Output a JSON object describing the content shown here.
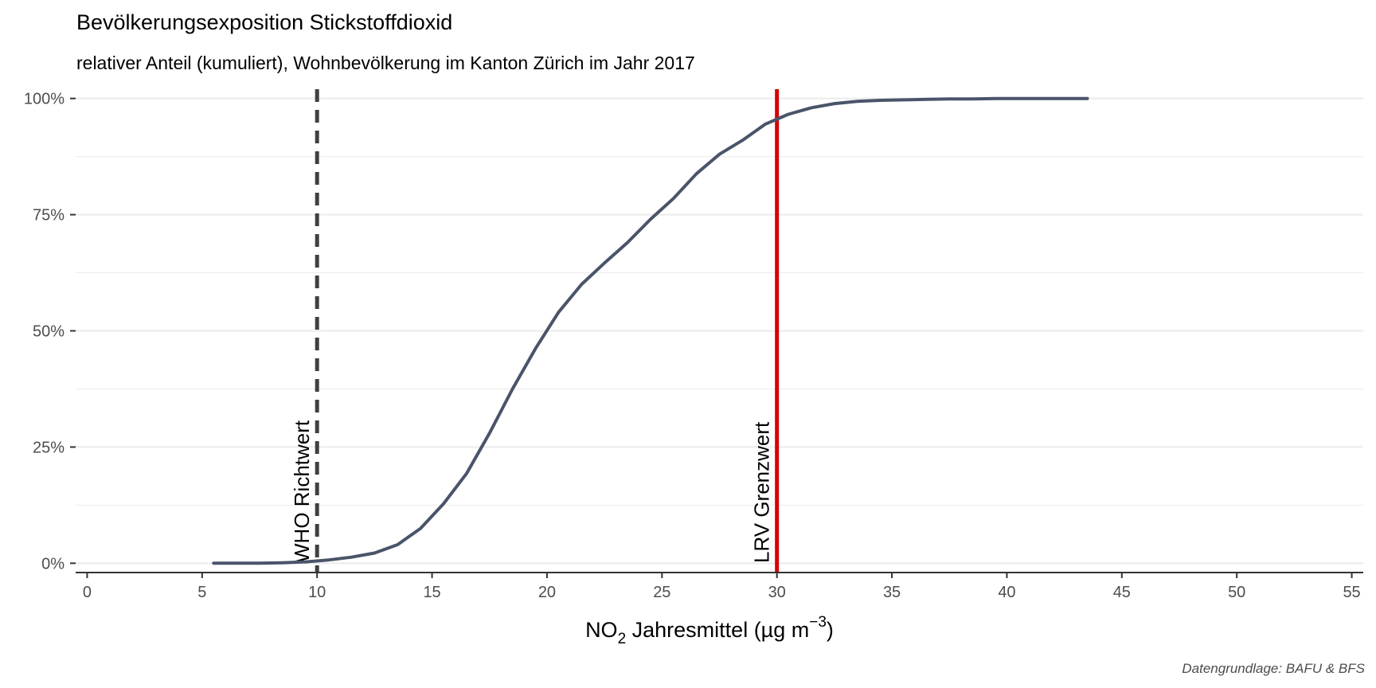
{
  "chart_data": {
    "type": "line",
    "title": "Bevölkerungsexposition Stickstoffdioxid",
    "subtitle": "relativer Anteil (kumuliert), Wohnbevölkerung im Kanton Zürich im Jahr 2017",
    "xlabel": {
      "prefix": "NO",
      "sub": "2",
      "middle": " Jahresmittel (µg m",
      "sup": "−3",
      "suffix": ")"
    },
    "ylabel": "",
    "caption": "Datengrundlage: BAFU & BFS",
    "xlim": [
      -0.5,
      55.5
    ],
    "ylim": [
      -0.02,
      1.02
    ],
    "x_ticks": [
      0,
      5,
      10,
      15,
      20,
      25,
      30,
      35,
      40,
      45,
      50,
      55
    ],
    "x_tick_labels": [
      "0",
      "5",
      "10",
      "15",
      "20",
      "25",
      "30",
      "35",
      "40",
      "45",
      "50",
      "55"
    ],
    "y_ticks": [
      0,
      0.25,
      0.5,
      0.75,
      1.0
    ],
    "y_tick_labels": [
      "0%",
      "25%",
      "50%",
      "75%",
      "100%"
    ],
    "y_minor_ticks": [
      0.125,
      0.375,
      0.625,
      0.875
    ],
    "grid": "horizontal",
    "series": [
      {
        "color": "#4a5469",
        "x": [
          5.5,
          6.5,
          7.5,
          8.5,
          9.5,
          10.5,
          11.5,
          12.5,
          13.5,
          14.5,
          15.5,
          16.5,
          17.5,
          18.5,
          19.5,
          20.5,
          21.5,
          22.5,
          23.5,
          24.5,
          25.5,
          26.5,
          27.5,
          28.5,
          29.5,
          30.5,
          31.5,
          32.5,
          33.5,
          34.5,
          35.5,
          36.5,
          37.5,
          38.5,
          39.5,
          40.5,
          41.5,
          42.5,
          43.5
        ],
        "y": [
          0.0,
          0.0,
          0.0,
          0.001,
          0.003,
          0.007,
          0.013,
          0.022,
          0.04,
          0.075,
          0.128,
          0.193,
          0.28,
          0.375,
          0.462,
          0.54,
          0.6,
          0.646,
          0.69,
          0.74,
          0.785,
          0.838,
          0.88,
          0.91,
          0.945,
          0.966,
          0.98,
          0.989,
          0.994,
          0.996,
          0.997,
          0.998,
          0.999,
          0.999,
          1.0,
          1.0,
          1.0,
          1.0,
          1.0
        ]
      }
    ],
    "reference_lines": [
      {
        "x": 10,
        "label": "WHO Richtwert",
        "style": "dashed",
        "color": "#404040"
      },
      {
        "x": 30,
        "label": "LRV Grenzwert",
        "style": "solid",
        "color": "#d40000"
      }
    ],
    "colors": {
      "grid": "#ebebeb",
      "axis": "#333333"
    }
  }
}
